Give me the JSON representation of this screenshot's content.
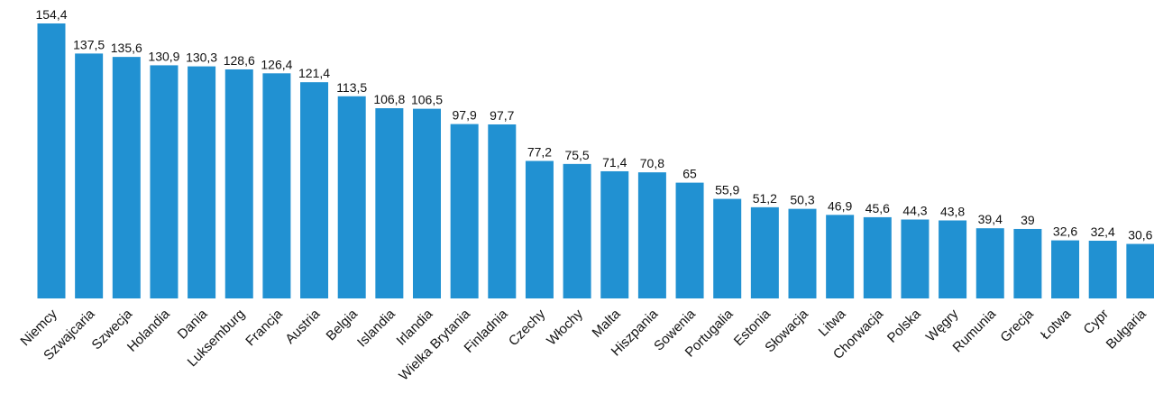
{
  "chart_data": {
    "type": "bar",
    "title": "",
    "xlabel": "",
    "ylabel": "",
    "ylim": [
      0,
      154.4
    ],
    "grid": false,
    "legend": "none",
    "bar_color": "#2191d2",
    "categories": [
      "Niemcy",
      "Szwajcaria",
      "Szwecja",
      "Holandia",
      "Dania",
      "Luksemburg",
      "Francja",
      "Austria",
      "Belgia",
      "Islandia",
      "Irlandia",
      "Wielka Brytania",
      "Finladnia",
      "Czechy",
      "Włochy",
      "Malta",
      "Hiszpania",
      "Sowenia",
      "Portugalia",
      "Estonia",
      "Słowacja",
      "Litwa",
      "Chorwacja",
      "Polska",
      "Węgry",
      "Rumunia",
      "Grecja",
      "Łotwa",
      "Cypr",
      "Bułgaria"
    ],
    "values": [
      154.4,
      137.5,
      135.6,
      130.9,
      130.3,
      128.6,
      126.4,
      121.4,
      113.5,
      106.8,
      106.5,
      97.9,
      97.7,
      77.2,
      75.5,
      71.4,
      70.8,
      65,
      55.9,
      51.2,
      50.3,
      46.9,
      45.6,
      44.3,
      43.8,
      39.4,
      39,
      32.6,
      32.4,
      30.6
    ],
    "value_labels": [
      "154,4",
      "137,5",
      "135,6",
      "130,9",
      "130,3",
      "128,6",
      "126,4",
      "121,4",
      "113,5",
      "106,8",
      "106,5",
      "97,9",
      "97,7",
      "77,2",
      "75,5",
      "71,4",
      "70,8",
      "65",
      "55,9",
      "51,2",
      "50,3",
      "46,9",
      "45,6",
      "44,3",
      "43,8",
      "39,4",
      "39",
      "32,6",
      "32,4",
      "30,6"
    ]
  }
}
